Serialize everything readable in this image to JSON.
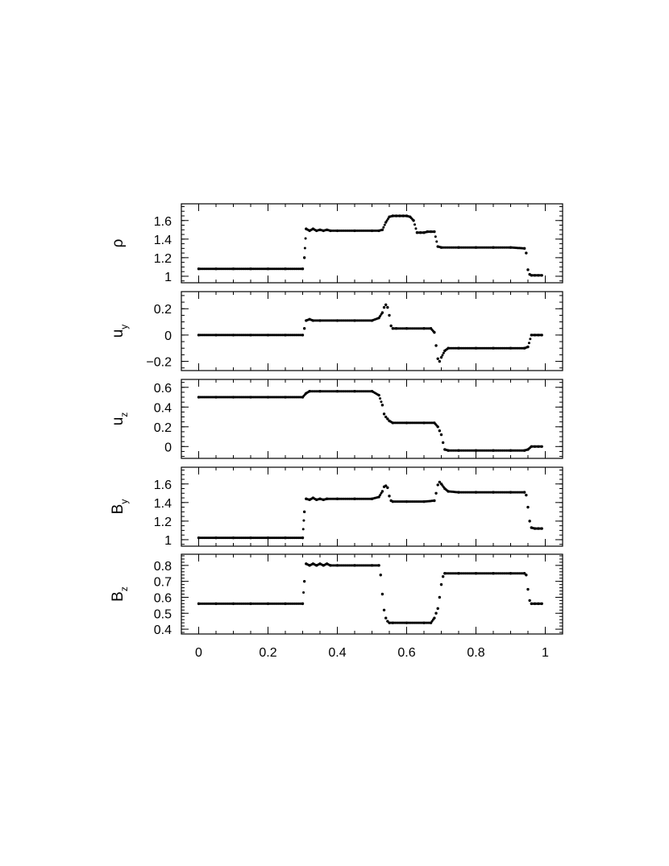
{
  "chart_data": [
    {
      "type": "scatter",
      "ylabel": "ρ",
      "ylabel_sub": "",
      "xlim": [
        -0.05,
        1.05
      ],
      "ylim": [
        0.93,
        1.78
      ],
      "yticks": [
        1,
        1.2,
        1.4,
        1.6
      ],
      "ytick_labels": [
        "1",
        "1.2",
        "1.4",
        "1.6"
      ],
      "yminor": 0.05,
      "x": [
        0.0,
        0.05,
        0.1,
        0.15,
        0.2,
        0.25,
        0.3,
        0.305,
        0.31,
        0.32,
        0.33,
        0.34,
        0.35,
        0.36,
        0.37,
        0.38,
        0.4,
        0.45,
        0.5,
        0.52,
        0.53,
        0.54,
        0.55,
        0.56,
        0.57,
        0.58,
        0.59,
        0.6,
        0.61,
        0.62,
        0.63,
        0.64,
        0.65,
        0.66,
        0.67,
        0.68,
        0.69,
        0.7,
        0.75,
        0.8,
        0.85,
        0.9,
        0.94,
        0.945,
        0.95,
        0.955,
        0.96,
        0.97,
        0.98,
        0.99
      ],
      "values": [
        1.08,
        1.08,
        1.08,
        1.08,
        1.08,
        1.08,
        1.08,
        1.2,
        1.51,
        1.49,
        1.51,
        1.49,
        1.5,
        1.49,
        1.5,
        1.49,
        1.49,
        1.49,
        1.49,
        1.49,
        1.5,
        1.58,
        1.64,
        1.65,
        1.65,
        1.65,
        1.65,
        1.65,
        1.64,
        1.6,
        1.47,
        1.47,
        1.47,
        1.48,
        1.48,
        1.48,
        1.32,
        1.31,
        1.31,
        1.31,
        1.31,
        1.31,
        1.3,
        1.25,
        1.07,
        1.02,
        1.01,
        1.01,
        1.01,
        1.01
      ]
    },
    {
      "type": "scatter",
      "ylabel": "u",
      "ylabel_sub": "y",
      "xlim": [
        -0.05,
        1.05
      ],
      "ylim": [
        -0.27,
        0.33
      ],
      "yticks": [
        -0.2,
        0,
        0.2
      ],
      "ytick_labels": [
        "−0.2",
        "0",
        "0.2"
      ],
      "yminor": 0.05,
      "x": [
        0.0,
        0.05,
        0.1,
        0.15,
        0.2,
        0.25,
        0.3,
        0.305,
        0.31,
        0.32,
        0.33,
        0.35,
        0.4,
        0.45,
        0.5,
        0.52,
        0.53,
        0.535,
        0.54,
        0.545,
        0.55,
        0.555,
        0.56,
        0.57,
        0.6,
        0.65,
        0.67,
        0.68,
        0.685,
        0.69,
        0.695,
        0.7,
        0.71,
        0.72,
        0.75,
        0.8,
        0.85,
        0.9,
        0.94,
        0.95,
        0.96,
        0.97,
        0.98,
        0.99
      ],
      "values": [
        0.0,
        0.0,
        0.0,
        0.0,
        0.0,
        0.0,
        0.0,
        0.05,
        0.11,
        0.12,
        0.11,
        0.11,
        0.11,
        0.11,
        0.11,
        0.13,
        0.17,
        0.21,
        0.23,
        0.21,
        0.15,
        0.07,
        0.05,
        0.05,
        0.05,
        0.05,
        0.05,
        0.02,
        -0.08,
        -0.18,
        -0.2,
        -0.17,
        -0.12,
        -0.1,
        -0.1,
        -0.1,
        -0.1,
        -0.1,
        -0.1,
        -0.09,
        0.0,
        0.0,
        0.0,
        0.0
      ]
    },
    {
      "type": "scatter",
      "ylabel": "u",
      "ylabel_sub": "z",
      "xlim": [
        -0.05,
        1.05
      ],
      "ylim": [
        -0.12,
        0.68
      ],
      "yticks": [
        0,
        0.2,
        0.4,
        0.6
      ],
      "ytick_labels": [
        "0",
        "0.2",
        "0.4",
        "0.6"
      ],
      "yminor": 0.05,
      "x": [
        0.0,
        0.05,
        0.1,
        0.15,
        0.2,
        0.25,
        0.3,
        0.31,
        0.32,
        0.35,
        0.4,
        0.45,
        0.5,
        0.52,
        0.53,
        0.535,
        0.54,
        0.545,
        0.55,
        0.56,
        0.6,
        0.65,
        0.68,
        0.69,
        0.695,
        0.7,
        0.705,
        0.71,
        0.72,
        0.75,
        0.8,
        0.85,
        0.9,
        0.94,
        0.95,
        0.96,
        0.97,
        0.98,
        0.99
      ],
      "values": [
        0.5,
        0.5,
        0.5,
        0.5,
        0.5,
        0.5,
        0.5,
        0.54,
        0.56,
        0.56,
        0.56,
        0.56,
        0.56,
        0.52,
        0.42,
        0.33,
        0.3,
        0.28,
        0.26,
        0.24,
        0.24,
        0.24,
        0.24,
        0.2,
        0.16,
        0.12,
        0.04,
        -0.03,
        -0.04,
        -0.04,
        -0.04,
        -0.04,
        -0.04,
        -0.04,
        -0.03,
        0.0,
        0.0,
        0.0,
        0.0
      ]
    },
    {
      "type": "scatter",
      "ylabel": "B",
      "ylabel_sub": "y",
      "xlim": [
        -0.05,
        1.05
      ],
      "ylim": [
        0.93,
        1.78
      ],
      "yticks": [
        1,
        1.2,
        1.4,
        1.6
      ],
      "ytick_labels": [
        "1",
        "1.2",
        "1.4",
        "1.6"
      ],
      "yminor": 0.05,
      "x": [
        0.0,
        0.05,
        0.1,
        0.15,
        0.2,
        0.25,
        0.3,
        0.305,
        0.31,
        0.32,
        0.33,
        0.34,
        0.35,
        0.36,
        0.37,
        0.4,
        0.45,
        0.5,
        0.52,
        0.53,
        0.535,
        0.54,
        0.545,
        0.55,
        0.555,
        0.56,
        0.6,
        0.65,
        0.68,
        0.685,
        0.69,
        0.695,
        0.7,
        0.71,
        0.72,
        0.75,
        0.8,
        0.85,
        0.9,
        0.94,
        0.945,
        0.95,
        0.955,
        0.96,
        0.97,
        0.98,
        0.99
      ],
      "values": [
        1.02,
        1.02,
        1.02,
        1.02,
        1.02,
        1.02,
        1.02,
        1.3,
        1.44,
        1.43,
        1.45,
        1.43,
        1.44,
        1.43,
        1.44,
        1.44,
        1.44,
        1.44,
        1.46,
        1.52,
        1.57,
        1.58,
        1.56,
        1.47,
        1.42,
        1.41,
        1.41,
        1.41,
        1.42,
        1.5,
        1.59,
        1.62,
        1.6,
        1.55,
        1.52,
        1.51,
        1.51,
        1.51,
        1.51,
        1.51,
        1.48,
        1.35,
        1.2,
        1.13,
        1.12,
        1.12,
        1.12
      ]
    },
    {
      "type": "scatter",
      "ylabel": "B",
      "ylabel_sub": "z",
      "xlim": [
        -0.05,
        1.05
      ],
      "ylim": [
        0.37,
        0.87
      ],
      "yticks": [
        0.4,
        0.5,
        0.6,
        0.7,
        0.8
      ],
      "ytick_labels": [
        "0.4",
        "0.5",
        "0.6",
        "0.7",
        "0.8"
      ],
      "yminor": 0.02,
      "x": [
        0.0,
        0.05,
        0.1,
        0.15,
        0.2,
        0.25,
        0.3,
        0.305,
        0.31,
        0.32,
        0.33,
        0.34,
        0.35,
        0.36,
        0.37,
        0.38,
        0.4,
        0.45,
        0.5,
        0.52,
        0.525,
        0.53,
        0.535,
        0.54,
        0.545,
        0.55,
        0.56,
        0.6,
        0.65,
        0.67,
        0.68,
        0.685,
        0.69,
        0.695,
        0.7,
        0.705,
        0.71,
        0.75,
        0.8,
        0.85,
        0.9,
        0.94,
        0.945,
        0.95,
        0.955,
        0.96,
        0.97,
        0.98,
        0.99
      ],
      "values": [
        0.56,
        0.56,
        0.56,
        0.56,
        0.56,
        0.56,
        0.56,
        0.7,
        0.81,
        0.8,
        0.81,
        0.8,
        0.81,
        0.8,
        0.81,
        0.8,
        0.8,
        0.8,
        0.8,
        0.8,
        0.74,
        0.62,
        0.52,
        0.47,
        0.45,
        0.44,
        0.44,
        0.44,
        0.44,
        0.44,
        0.47,
        0.5,
        0.53,
        0.6,
        0.68,
        0.73,
        0.75,
        0.75,
        0.75,
        0.75,
        0.75,
        0.75,
        0.74,
        0.65,
        0.58,
        0.56,
        0.56,
        0.56,
        0.56
      ]
    }
  ],
  "x_axis": {
    "ticks": [
      0,
      0.2,
      0.4,
      0.6,
      0.8,
      1
    ],
    "tick_labels": [
      "0",
      "0.2",
      "0.4",
      "0.6",
      "0.8",
      "1"
    ],
    "minor": 0.05
  }
}
